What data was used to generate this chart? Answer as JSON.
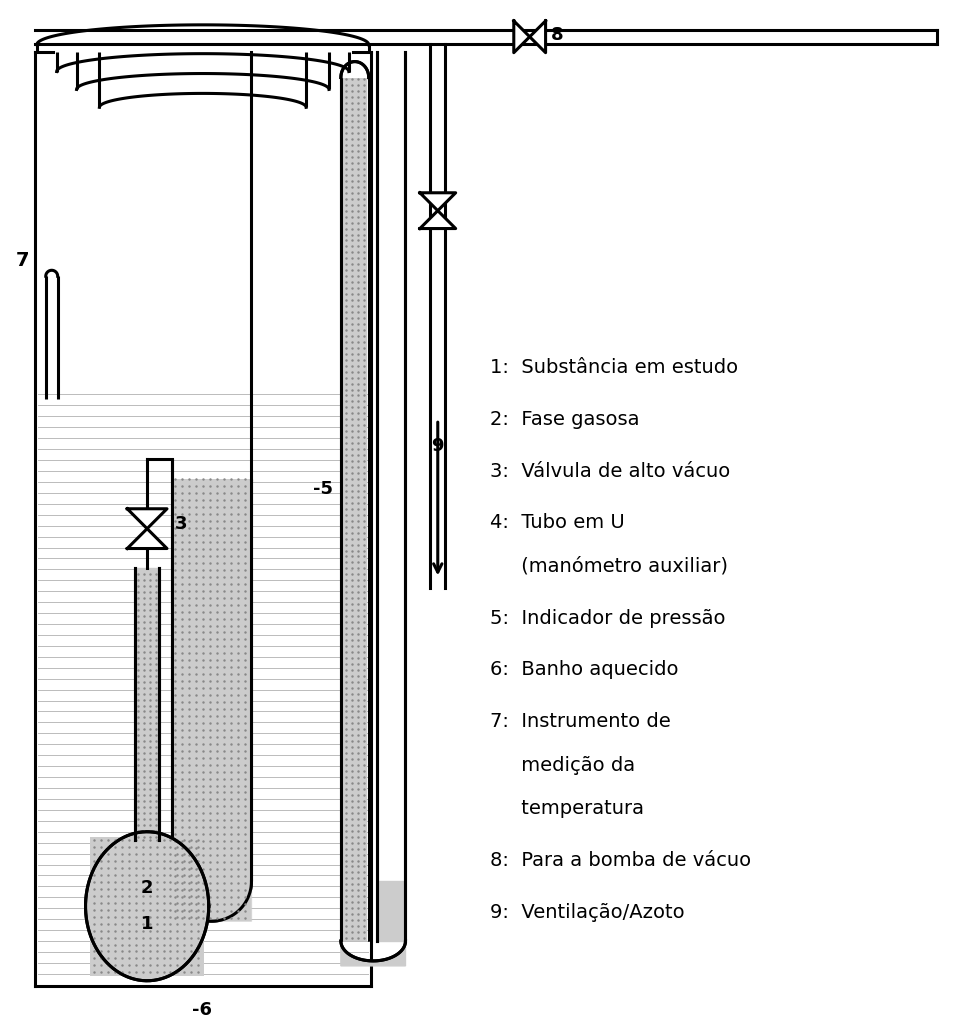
{
  "bg_color": "#ffffff",
  "line_color": "#000000",
  "lw": 2.2,
  "legend_texts": [
    "1:  Substância em estudo",
    "2:  Fase gasosa",
    "3:  Válvula de alto vácuo",
    "4:  Tubo em U",
    "     (manómetro auxiliar)",
    "5:  Indicador de pressão",
    "6:  Banho aquecido",
    "7:  Instrumento de",
    "     medição da",
    "     temperatura",
    "8:  Para a bomba de vácuo",
    "9:  Ventilação/Azoto"
  ]
}
